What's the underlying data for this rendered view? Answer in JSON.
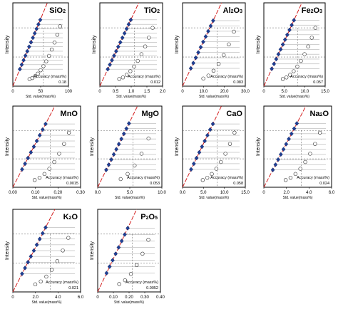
{
  "charts": [
    {
      "element": "SiO2",
      "label": "SiO",
      "sub": "2",
      "xticks": [
        "0",
        "50",
        "100"
      ],
      "xmax": 100,
      "accuracy": "0.18",
      "ylabel": "Intensity",
      "xlabel": "Std. value(mass%)",
      "acc_label": "Accuracy (mass%)"
    },
    {
      "element": "TiO2",
      "label": "TiO",
      "sub": "2",
      "xticks": [
        "0",
        "0.5",
        "1.0",
        "1.5",
        "2.0"
      ],
      "xmax": 2.0,
      "accuracy": "0.012",
      "ylabel": "Intensity",
      "xlabel": "Std. value(mass%)",
      "acc_label": "Accuracy (mass%)"
    },
    {
      "element": "Al2O3",
      "label": "Al",
      "sub": "2",
      "label2": "O",
      "sub2": "3",
      "xticks": [
        "0",
        "10.0",
        "20.0",
        "30.0"
      ],
      "xmax": 30,
      "accuracy": "0.083",
      "ylabel": "Intensity",
      "xlabel": "Std. value(mass%)",
      "acc_label": "Accuracy (mass%)"
    },
    {
      "element": "Fe2O3",
      "label": "Fe",
      "sub": "2",
      "label2": "O",
      "sub2": "3",
      "xticks": [
        "0",
        "5.0",
        "10.0",
        "15.0"
      ],
      "xmax": 15,
      "accuracy": "0.057",
      "ylabel": "Intensity",
      "xlabel": "Std. value(mass%)",
      "acc_label": "Accuracy (mass%)"
    },
    {
      "element": "MnO",
      "label": "MnO",
      "xticks": [
        "0.00",
        "0.10",
        "0.20",
        "0.30"
      ],
      "xmax": 0.3,
      "accuracy": "0.0015",
      "ylabel": "Intensity",
      "xlabel": "Std. value(mass%)",
      "acc_label": "Accuracy (mass%)"
    },
    {
      "element": "MgO",
      "label": "MgO",
      "xticks": [
        "0.0",
        "5.0",
        "10.0"
      ],
      "xmax": 10,
      "accuracy": "0.053",
      "ylabel": "Intensity",
      "xlabel": "Std. value(mass%)",
      "acc_label": "Accuracy (mass%)"
    },
    {
      "element": "CaO",
      "label": "CaO",
      "xticks": [
        "0.0",
        "5.0",
        "10.0",
        "15.0"
      ],
      "xmax": 15,
      "accuracy": "0.058",
      "ylabel": "Intensity",
      "xlabel": "Std. value(mass%)",
      "acc_label": "Accuracy (mass%)"
    },
    {
      "element": "Na2O",
      "label": "Na",
      "sub": "2",
      "label2": "O",
      "xticks": [
        "0",
        "2.0",
        "4.0",
        "6.0"
      ],
      "xmax": 6,
      "accuracy": "0.024",
      "ylabel": "Intensity",
      "xlabel": "Std. value(mass%)",
      "acc_label": "Accuracy (mass%)"
    },
    {
      "element": "K2O",
      "label": "K",
      "sub": "2",
      "label2": "O",
      "xticks": [
        "0",
        "2.0",
        "4.0",
        "6.0"
      ],
      "xmax": 6,
      "accuracy": "0.021",
      "ylabel": "Intensity",
      "xlabel": "Std. value(mass%)",
      "acc_label": "Accuracy (mass%)"
    },
    {
      "element": "P2O5",
      "label": "P",
      "sub": "2",
      "label2": "O",
      "sub2": "5",
      "xticks": [
        "0",
        "0.10",
        "0.20",
        "0.30",
        "0.40"
      ],
      "xmax": 0.4,
      "accuracy": "0.0052",
      "ylabel": "Intensity",
      "xlabel": "Std. value(mass%)",
      "acc_label": "Accuracy (mass%)"
    }
  ],
  "chart_data": [
    {
      "type": "scatter",
      "title": "SiO2",
      "xlabel": "Std. value(mass%)",
      "ylabel": "Intensity",
      "xlim": [
        0,
        100
      ],
      "series": [
        {
          "values_x": [
            25,
            28,
            31,
            34,
            37,
            40,
            43,
            46,
            49,
            52,
            55,
            58
          ]
        },
        {
          "values_x": [
            45,
            50,
            55,
            60,
            63,
            66,
            68,
            70,
            72,
            75,
            80,
            85
          ]
        }
      ]
    },
    {
      "type": "scatter",
      "title": "TiO2",
      "xlabel": "Std. value(mass%)",
      "ylabel": "Intensity",
      "xlim": [
        0,
        2.0
      ],
      "series": [
        {
          "values_x": [
            0.05,
            0.1,
            0.15,
            0.2,
            0.25,
            0.3,
            0.35,
            0.4,
            0.45,
            0.5,
            0.55,
            0.6
          ]
        },
        {
          "values_x": [
            0.55,
            0.6,
            0.7,
            0.8,
            0.9,
            1.0,
            1.2,
            1.4,
            1.6,
            1.8
          ]
        }
      ]
    },
    {
      "type": "scatter",
      "title": "Al2O3",
      "xlabel": "Std. value(mass%)",
      "ylabel": "Intensity",
      "xlim": [
        0,
        30
      ],
      "series": [
        {
          "values_x": [
            8,
            9,
            10,
            10.5,
            11,
            11.5,
            12,
            12.5,
            13,
            14
          ]
        },
        {
          "values_x": [
            12,
            14,
            16,
            18,
            20,
            22,
            24
          ]
        }
      ]
    },
    {
      "type": "scatter",
      "title": "Fe2O3",
      "xlabel": "Std. value(mass%)",
      "ylabel": "Intensity",
      "xlim": [
        0,
        15
      ],
      "series": [
        {
          "values_x": [
            0.5,
            1.0,
            1.5,
            2.0,
            2.5,
            3.0,
            3.5,
            4.0,
            4.5,
            5.0,
            5.5
          ]
        },
        {
          "values_x": [
            3,
            4,
            5,
            6,
            7,
            8,
            9,
            10,
            12,
            13
          ]
        }
      ]
    },
    {
      "type": "scatter",
      "title": "MnO",
      "xlabel": "Std. value(mass%)",
      "ylabel": "Intensity",
      "xlim": [
        0,
        0.3
      ],
      "series": [
        {
          "values_x": [
            0.02,
            0.03,
            0.04,
            0.05,
            0.06,
            0.07,
            0.08,
            0.09,
            0.1
          ]
        },
        {
          "values_x": [
            0.08,
            0.1,
            0.12,
            0.14,
            0.16,
            0.18,
            0.2,
            0.22
          ]
        }
      ]
    },
    {
      "type": "scatter",
      "title": "MgO",
      "xlabel": "Std. value(mass%)",
      "ylabel": "Intensity",
      "xlim": [
        0,
        10
      ],
      "series": [
        {
          "values_x": [
            0.5,
            1.0,
            1.5,
            2.0,
            2.5,
            3.0,
            3.5,
            4.0,
            4.5,
            5.0
          ]
        },
        {
          "values_x": [
            2,
            4,
            6,
            8,
            9.5
          ]
        }
      ]
    },
    {
      "type": "scatter",
      "title": "CaO",
      "xlabel": "Std. value(mass%)",
      "ylabel": "Intensity",
      "xlim": [
        0,
        15
      ],
      "series": [
        {
          "values_x": [
            0.5,
            1.0,
            2.0,
            3.0,
            4.0,
            5.0,
            6.0,
            7.0,
            8.0
          ]
        },
        {
          "values_x": [
            1,
            3,
            5,
            7,
            9,
            11,
            13,
            14
          ]
        }
      ]
    },
    {
      "type": "scatter",
      "title": "Na2O",
      "xlabel": "Std. value(mass%)",
      "ylabel": "Intensity",
      "xlim": [
        0,
        6
      ],
      "series": [
        {
          "values_x": [
            0.5,
            1.0,
            1.2,
            1.4,
            1.6,
            1.8,
            2.0,
            2.2,
            2.5,
            2.8
          ]
        },
        {
          "values_x": [
            1.5,
            2.0,
            2.5,
            3.0,
            3.5,
            4.0,
            4.5,
            5.0
          ]
        }
      ]
    },
    {
      "type": "scatter",
      "title": "K2O",
      "xlabel": "Std. value(mass%)",
      "ylabel": "Intensity",
      "xlim": [
        0,
        6
      ],
      "series": [
        {
          "values_x": [
            0.2,
            0.4,
            0.6,
            0.8,
            1.0,
            1.2,
            1.4,
            1.6,
            1.8
          ]
        },
        {
          "values_x": [
            0.5,
            1.0,
            1.5,
            2.0,
            3.0,
            4.0,
            5.0
          ]
        }
      ]
    },
    {
      "type": "scatter",
      "title": "P2O5",
      "xlabel": "Std. value(mass%)",
      "ylabel": "Intensity",
      "xlim": [
        0,
        0.4
      ],
      "series": [
        {
          "values_x": [
            0.01,
            0.02,
            0.03,
            0.04,
            0.05,
            0.06,
            0.07,
            0.08
          ]
        },
        {
          "values_x": [
            0.05,
            0.1,
            0.15,
            0.2,
            0.25,
            0.3
          ]
        }
      ]
    }
  ]
}
